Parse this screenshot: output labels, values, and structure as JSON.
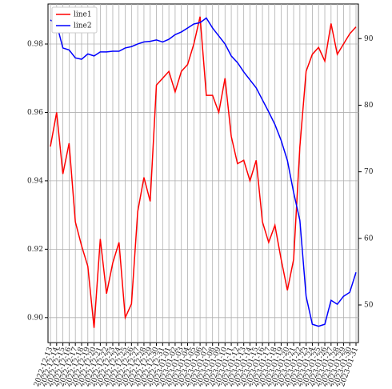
{
  "chart_data": {
    "type": "line",
    "categories": [
      "2022-12-13",
      "2022-12-14",
      "2022-12-15",
      "2022-12-16",
      "2022-12-17",
      "2022-12-18",
      "2022-12-19",
      "2022-12-20",
      "2022-12-21",
      "2022-12-22",
      "2022-12-23",
      "2022-12-24",
      "2022-12-25",
      "2022-12-26",
      "2022-12-27",
      "2022-12-28",
      "2022-12-29",
      "2022-12-30",
      "2022-12-31",
      "2023-01-01",
      "2023-01-02",
      "2023-01-03",
      "2023-01-04",
      "2023-01-05",
      "2023-01-06",
      "2023-01-07",
      "2023-01-08",
      "2023-01-09",
      "2023-01-10",
      "2023-01-11",
      "2023-01-12",
      "2023-01-13",
      "2023-01-14",
      "2023-01-15",
      "2023-01-16",
      "2023-01-17",
      "2023-01-18",
      "2023-01-19",
      "2023-01-20",
      "2023-01-21",
      "2023-01-22",
      "2023-01-23",
      "2023-01-24",
      "2023-01-25",
      "2023-01-26",
      "2023-01-27",
      "2023-01-28",
      "2023-01-29",
      "2023-01-30",
      "2023-01-31"
    ],
    "series": [
      {
        "name": "line1",
        "color": "#ff0000",
        "values": [
          0.95,
          0.96,
          0.942,
          0.951,
          0.928,
          0.921,
          0.915,
          0.897,
          0.923,
          0.907,
          0.916,
          0.922,
          0.9,
          0.904,
          0.931,
          0.941,
          0.934,
          0.968,
          0.97,
          0.972,
          0.966,
          0.972,
          0.974,
          0.98,
          0.988,
          0.965,
          0.965,
          0.96,
          0.97,
          0.953,
          0.945,
          0.946,
          0.94,
          0.946,
          0.928,
          0.922,
          0.927,
          0.917,
          0.908,
          0.917,
          0.95,
          0.972,
          0.977,
          0.979,
          0.975,
          0.986,
          0.977,
          0.98,
          0.983,
          0.985
        ]
      },
      {
        "name": "line2",
        "color": "#0000ff",
        "axis": "y2",
        "values": [
          92.8,
          92.2,
          88.6,
          88.3,
          87.1,
          86.9,
          87.7,
          87.4,
          88.0,
          88.0,
          88.1,
          88.1,
          88.6,
          88.8,
          89.2,
          89.5,
          89.6,
          89.8,
          89.5,
          89.9,
          90.6,
          91.0,
          91.6,
          92.2,
          92.4,
          93.1,
          91.6,
          90.4,
          89.2,
          87.4,
          86.4,
          85.0,
          83.8,
          82.6,
          80.8,
          79.0,
          77.1,
          74.7,
          71.7,
          66.9,
          62.7,
          51.3,
          47.1,
          46.8,
          47.1,
          50.7,
          50.1,
          51.3,
          51.9,
          54.9
        ]
      }
    ],
    "ylim": [
      0.8927,
      0.9917
    ],
    "yticks": [
      {
        "value": 0.9,
        "label": "0.90"
      },
      {
        "value": 0.92,
        "label": "0.92"
      },
      {
        "value": 0.94,
        "label": "0.94"
      },
      {
        "value": 0.96,
        "label": "0.96"
      },
      {
        "value": 0.98,
        "label": "0.98"
      }
    ],
    "y2lim": [
      44.35,
      95.2
    ],
    "y2ticks": [
      50,
      60,
      70,
      80,
      90
    ],
    "grid": true,
    "legend": "upper left"
  }
}
